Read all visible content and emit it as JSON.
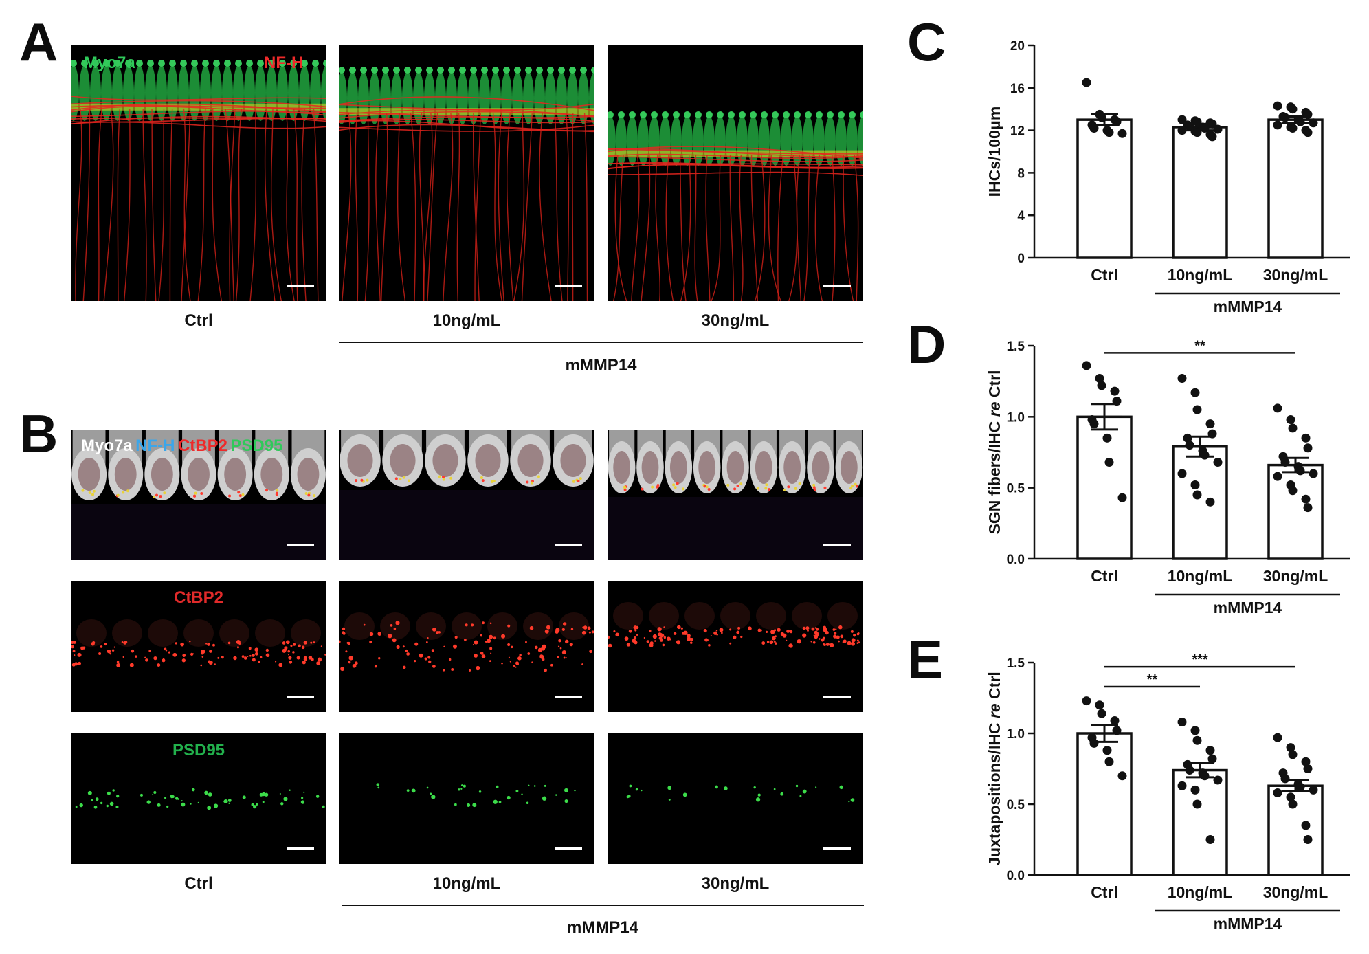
{
  "panels": {
    "A": {
      "letter": "A",
      "channels": [
        {
          "text": "Myo7a",
          "color": "#2fc95a"
        },
        {
          "text": "NF-H",
          "color": "#ee2a2a"
        }
      ],
      "labels": [
        "Ctrl",
        "10ng/mL",
        "30ng/mL"
      ],
      "group": "mMMP14"
    },
    "B": {
      "letter": "B",
      "channels": [
        {
          "text": "Myo7a",
          "color": "#ffffff"
        },
        {
          "text": "NF-H",
          "color": "#3aa6ea"
        },
        {
          "text": "CtBP2",
          "color": "#ee2a2a"
        },
        {
          "text": "PSD95",
          "color": "#2fc95a"
        }
      ],
      "row2_label": {
        "text": "CtBP2",
        "color": "#e02a2a"
      },
      "row3_label": {
        "text": "PSD95",
        "color": "#22b04c"
      },
      "labels": [
        "Ctrl",
        "10ng/mL",
        "30ng/mL"
      ],
      "group": "mMMP14"
    },
    "C": {
      "letter": "C"
    },
    "D": {
      "letter": "D"
    },
    "E": {
      "letter": "E"
    }
  },
  "chart_data": [
    {
      "panel": "C",
      "type": "bar",
      "categories": [
        "Ctrl",
        "10ng/mL",
        "30ng/mL"
      ],
      "group_label": "mMMP14",
      "group_spans": [
        1,
        2
      ],
      "ylabel": "IHCs/100μm",
      "ylim": [
        0,
        20
      ],
      "yticks": [
        "0",
        "4",
        "8",
        "12",
        "16",
        "20"
      ],
      "ytick_values": [
        0,
        4,
        8,
        12,
        16,
        20
      ],
      "values": [
        13.0,
        12.3,
        13.0
      ],
      "sem": [
        0.5,
        0.3,
        0.3
      ],
      "points": [
        [
          16.5,
          13.5,
          13.2,
          13.0,
          12.8,
          12.5,
          12.2,
          12.0,
          11.8,
          11.7
        ],
        [
          13.0,
          12.9,
          12.8,
          12.7,
          12.6,
          12.5,
          12.4,
          12.3,
          12.2,
          12.1,
          12.0,
          11.9,
          11.8,
          11.6,
          11.4
        ],
        [
          14.3,
          14.2,
          14.0,
          13.7,
          13.5,
          13.3,
          13.2,
          13.0,
          12.8,
          12.7,
          12.5,
          12.3,
          12.2,
          12.0,
          11.8
        ]
      ],
      "significance": []
    },
    {
      "panel": "D",
      "type": "bar",
      "categories": [
        "Ctrl",
        "10ng/mL",
        "30ng/mL"
      ],
      "group_label": "mMMP14",
      "group_spans": [
        1,
        2
      ],
      "ylabel_parts": [
        "SGN fibers/IHC ",
        "re",
        " Ctrl"
      ],
      "ylim": [
        0,
        1.5
      ],
      "yticks": [
        "0.0",
        "0.5",
        "1.0",
        "1.5"
      ],
      "ytick_values": [
        0,
        0.5,
        1.0,
        1.5
      ],
      "values": [
        1.0,
        0.79,
        0.66
      ],
      "sem": [
        0.09,
        0.07,
        0.05
      ],
      "points": [
        [
          1.36,
          1.27,
          1.22,
          1.18,
          1.11,
          0.98,
          0.95,
          0.85,
          0.68,
          0.43
        ],
        [
          1.27,
          1.17,
          1.05,
          0.95,
          0.88,
          0.85,
          0.8,
          0.76,
          0.73,
          0.68,
          0.6,
          0.52,
          0.45,
          0.4
        ],
        [
          1.06,
          0.98,
          0.92,
          0.85,
          0.78,
          0.72,
          0.68,
          0.65,
          0.62,
          0.6,
          0.58,
          0.52,
          0.48,
          0.42,
          0.36
        ]
      ],
      "significance": [
        {
          "from": 0,
          "to": 2,
          "y": 1.45,
          "label": "**"
        }
      ]
    },
    {
      "panel": "E",
      "type": "bar",
      "categories": [
        "Ctrl",
        "10ng/mL",
        "30ng/mL"
      ],
      "group_label": "mMMP14",
      "group_spans": [
        1,
        2
      ],
      "ylabel_parts": [
        "Juxtapositions/IHC ",
        "re",
        " Ctrl"
      ],
      "ylim": [
        0,
        1.5
      ],
      "yticks": [
        "0.0",
        "0.5",
        "1.0",
        "1.5"
      ],
      "ytick_values": [
        0,
        0.5,
        1.0,
        1.5
      ],
      "values": [
        1.0,
        0.74,
        0.63
      ],
      "sem": [
        0.06,
        0.05,
        0.04
      ],
      "points": [
        [
          1.23,
          1.2,
          1.14,
          1.09,
          1.02,
          0.97,
          0.93,
          0.88,
          0.8,
          0.7
        ],
        [
          1.08,
          1.02,
          0.95,
          0.88,
          0.82,
          0.78,
          0.74,
          0.72,
          0.7,
          0.67,
          0.63,
          0.6,
          0.5,
          0.25
        ],
        [
          0.97,
          0.9,
          0.85,
          0.8,
          0.75,
          0.72,
          0.68,
          0.64,
          0.62,
          0.6,
          0.58,
          0.55,
          0.5,
          0.35,
          0.25
        ]
      ],
      "significance": [
        {
          "from": 0,
          "to": 1,
          "y": 1.33,
          "label": "**"
        },
        {
          "from": 0,
          "to": 2,
          "y": 1.47,
          "label": "***"
        }
      ]
    }
  ]
}
